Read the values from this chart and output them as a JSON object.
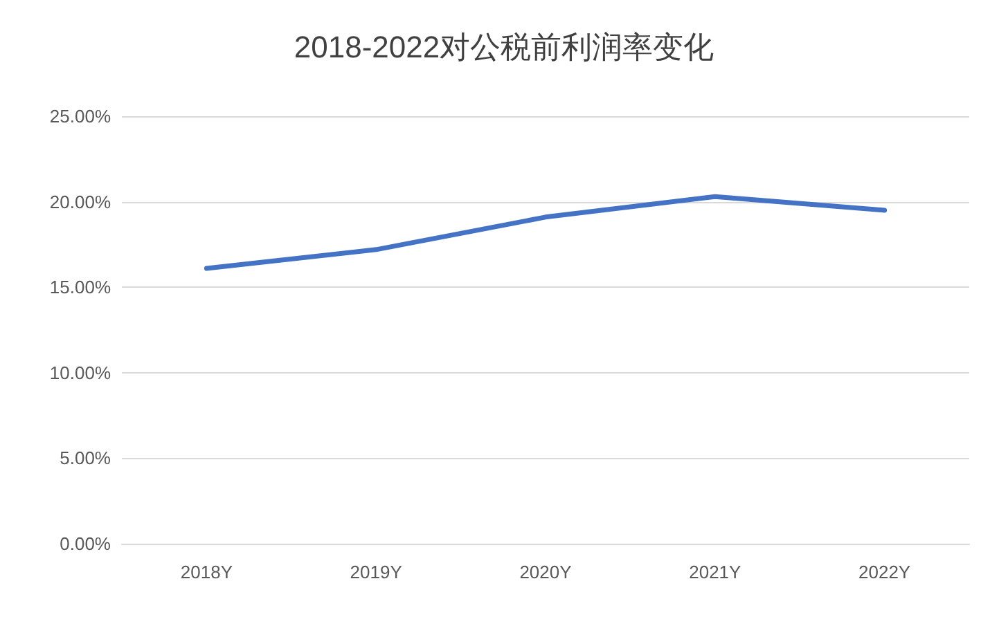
{
  "chart_data": {
    "type": "line",
    "title": "2018-2022对公税前利润率变化",
    "categories": [
      "2018Y",
      "2019Y",
      "2020Y",
      "2021Y",
      "2022Y"
    ],
    "values": [
      16.1,
      17.2,
      19.1,
      20.3,
      19.5
    ],
    "color": "#4472c4",
    "ylim": [
      0,
      25
    ],
    "yticks": [
      {
        "value": 0,
        "label": "0.00%"
      },
      {
        "value": 5,
        "label": "5.00%"
      },
      {
        "value": 10,
        "label": "10.00%"
      },
      {
        "value": 15,
        "label": "15.00%"
      },
      {
        "value": 20,
        "label": "20.00%"
      },
      {
        "value": 25,
        "label": "25.00%"
      }
    ],
    "grid": "y",
    "marker": "none",
    "line_style": "solid"
  }
}
